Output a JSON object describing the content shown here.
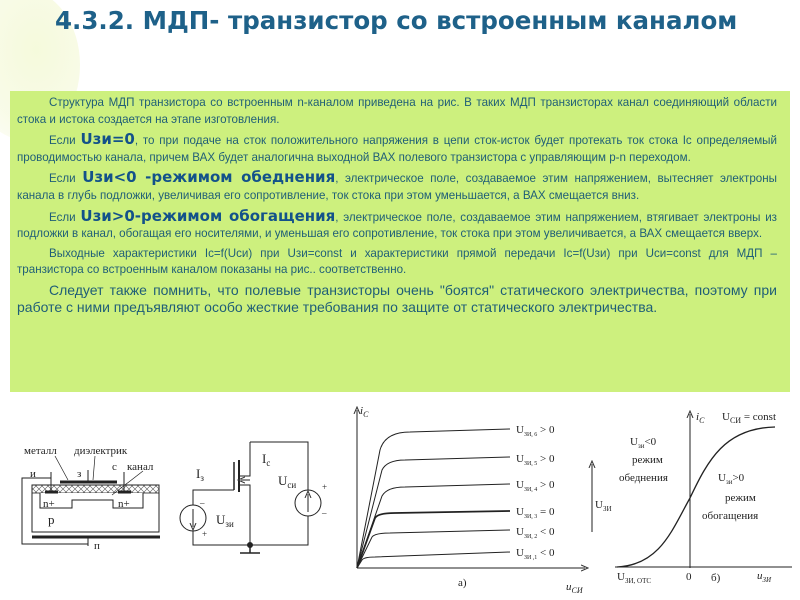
{
  "title": "4.3.2. МДП- транзистор со встроенным каналом",
  "paragraphs": {
    "p1": "Структура  МДП транзистора со встроенным n-каналом приведена на рис. В таких МДП транзисторах канал соединяющий области стока и истока создается  на этапе изготовления.",
    "p2_pre": "Если ",
    "p2_bold": "Uзи=0",
    "p2_post": ", то при подаче на сток положительного напряжения в цепи сток-исток будет протекать ток стока Ic определяемый проводимостью канала, причем ВАХ будет аналогична выходной ВАХ полевого транзистора с управляющим p-n переходом.",
    "p3_pre": "Если ",
    "p3_bold": "Uзи<0 -режимом обеднения",
    "p3_post": ", электрическое поле, создаваемое этим напряжением, вытесняет электроны канала в глубь подложки, увеличивая его сопротивление, ток стока при этом уменьшается, а ВАХ смещается вниз.",
    "p4_pre": "Если ",
    "p4_bold": "Uзи>0-режимом обогащения",
    "p4_post": ", электрическое поле, создаваемое этим напряжением, втягивает электроны из подложки в канал, обогащая его носителями, и уменьшая его сопротивление, ток стока при этом увеличивается, а ВАХ смещается вверх.",
    "p5": "Выходные характеристики Ic=f(Uси) при Uзи=const и характеристики прямой передачи Ic=f(Uзи) при Uси=const для МДП – транзистора со встроенным каналом показаны на рис.. соответственно.",
    "p6": "Следует также помнить, что полевые транзисторы очень \"боятся\" статического электричества, поэтому при работе с ними предъявляют особо жесткие требования по защите от статического электричества."
  },
  "structure": {
    "metal": "металл",
    "dielectric": "диэлектрик",
    "source": "и",
    "gate": "з",
    "drain": "с",
    "channel": "канал",
    "n_left": "n+",
    "n_right": "n+",
    "p": "p",
    "substrate": "п"
  },
  "circuit": {
    "ig": {
      "main": "I",
      "sub": "з"
    },
    "ic": {
      "main": "I",
      "sub": "с"
    },
    "uds": {
      "main": "U",
      "sub": "си"
    },
    "ugs": {
      "main": "U",
      "sub": "зи"
    },
    "minus": "–",
    "plus": "+"
  },
  "graph_a": {
    "y_label": {
      "main": "i",
      "sub": "С"
    },
    "x_label": {
      "main": "u",
      "sub": "СИ"
    },
    "caption": "а)",
    "curves": [
      {
        "main": "U",
        "sub": "ЗИ, 6",
        "rest": " > 0"
      },
      {
        "main": "U",
        "sub": "ЗИ, 5",
        "rest": " > 0"
      },
      {
        "main": "U",
        "sub": "ЗИ, 4",
        "rest": " > 0"
      },
      {
        "main": "U",
        "sub": "ЗИ, 3",
        "rest": " = 0"
      },
      {
        "main": "U",
        "sub": "ЗИ, 2",
        "rest": " < 0"
      },
      {
        "main": "U",
        "sub": "ЗИ ,1",
        "rest": " < 0"
      }
    ],
    "arrow_label": {
      "main": "U",
      "sub": "ЗИ"
    }
  },
  "graph_b": {
    "y_label": {
      "main": "i",
      "sub": "С"
    },
    "x_label": {
      "main": "u",
      "sub": "ЗИ"
    },
    "const_label": {
      "main": "U",
      "sub": "СИ",
      "rest": " = const"
    },
    "depletion": {
      "main": "U",
      "sub": "зи",
      "rest": "<0",
      "l2": "режим",
      "l3": "обеднения"
    },
    "enhancement": {
      "main": "U",
      "sub": "зи",
      "rest": ">0",
      "l2": "режим",
      "l3": "обогащения"
    },
    "cutoff": {
      "main": "U",
      "sub": "ЗИ, ОТС"
    },
    "zero": "0",
    "caption": "б)"
  },
  "colors": {
    "title": "#1e6189",
    "box": "#cdf07e",
    "text": "#1f5e77"
  }
}
